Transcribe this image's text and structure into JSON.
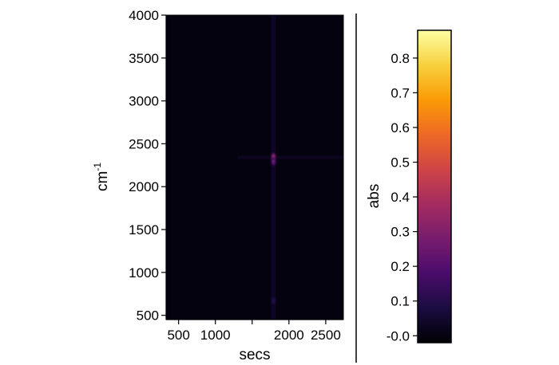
{
  "chart_data": {
    "type": "heatmap",
    "xlabel": "secs",
    "ylabel": "cm",
    "ylabel_superscript": "-1",
    "colorbar_label": "abs",
    "xlim": [
      330,
      2740
    ],
    "ylim": [
      450,
      4000
    ],
    "x_ticks": [
      500,
      1000,
      1500,
      2000,
      2500
    ],
    "x_tick_labels": [
      "500",
      "1000",
      "",
      "2000",
      "2500"
    ],
    "y_ticks": [
      500,
      1000,
      1500,
      2000,
      2500,
      3000,
      3500,
      4000
    ],
    "y_tick_labels": [
      "500",
      "1000",
      "1500",
      "2000",
      "2500",
      "3000",
      "3500",
      "4000"
    ],
    "colorbar_range": [
      -0.02,
      0.88
    ],
    "colorbar_ticks": [
      -0.0,
      0.1,
      0.2,
      0.3,
      0.4,
      0.5,
      0.6,
      0.7,
      0.8
    ],
    "colorbar_tick_labels": [
      "-0.0",
      "0.1",
      "0.2",
      "0.3",
      "0.4",
      "0.5",
      "0.6",
      "0.7",
      "0.8"
    ],
    "colormap": "inferno",
    "colormap_stops": [
      "#000004",
      "#1b0c41",
      "#4a0c6b",
      "#781c6d",
      "#a52c60",
      "#cf4446",
      "#ed6925",
      "#fb9b06",
      "#f7d13d",
      "#fcffa4"
    ],
    "background_value": 0.0,
    "features": [
      {
        "x": 1790,
        "y": 2340,
        "value": 0.47,
        "kind": "peak"
      },
      {
        "x": 1790,
        "y": 2290,
        "value": 0.3,
        "kind": "peak"
      },
      {
        "x": 1790,
        "y": 670,
        "value": 0.12,
        "kind": "peak"
      },
      {
        "x": 1790,
        "value": 0.01,
        "kind": "column"
      },
      {
        "y": 2340,
        "value": 0.01,
        "kind": "row"
      }
    ]
  }
}
